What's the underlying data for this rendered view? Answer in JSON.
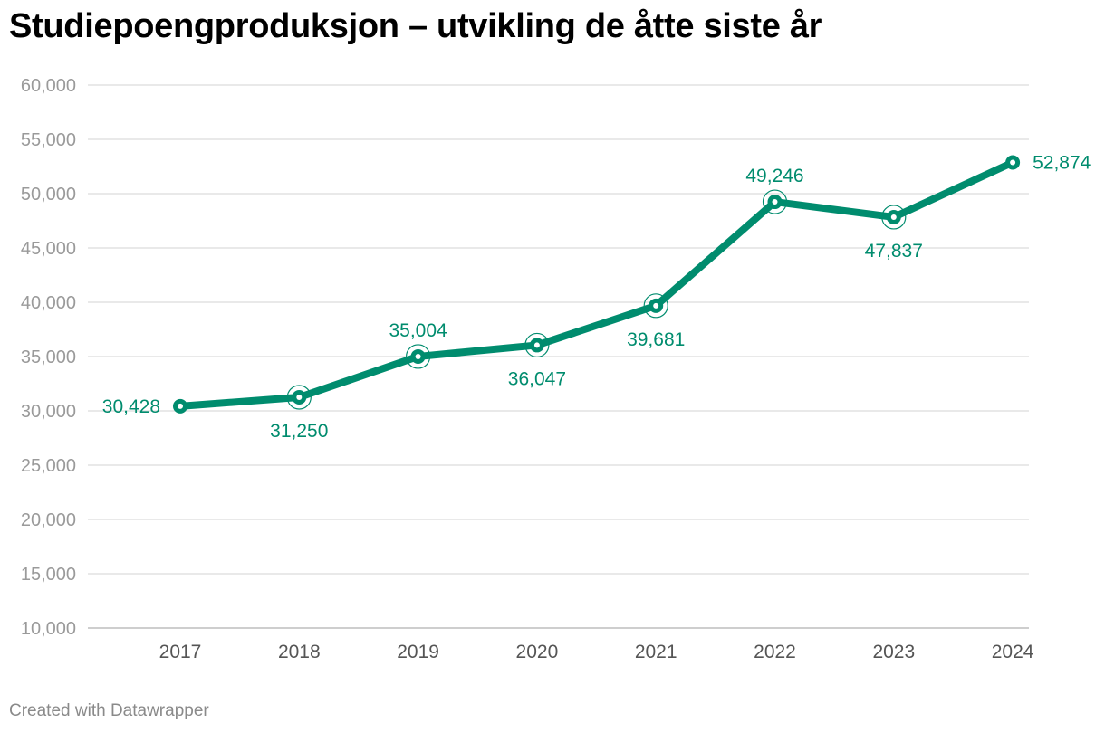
{
  "footer": "Created with Datawrapper",
  "colors": {
    "line": "#008c6e",
    "grid": "#e2e2e2",
    "ytick": "#9a9a9a",
    "xtick": "#555555"
  },
  "chart_data": {
    "type": "line",
    "title": "Studiepoengproduksjon – utvikling de åtte siste år",
    "xlabel": "",
    "ylabel": "",
    "ylim": [
      10000,
      60000
    ],
    "yticks": [
      10000,
      15000,
      20000,
      25000,
      30000,
      35000,
      40000,
      45000,
      50000,
      55000,
      60000
    ],
    "ytick_labels": [
      "10,000",
      "15,000",
      "20,000",
      "25,000",
      "30,000",
      "35,000",
      "40,000",
      "45,000",
      "50,000",
      "55,000",
      "60,000"
    ],
    "grid": true,
    "categories": [
      "2017",
      "2018",
      "2019",
      "2020",
      "2021",
      "2022",
      "2023",
      "2024"
    ],
    "series": [
      {
        "values": [
          30428,
          31250,
          35004,
          36047,
          39681,
          49246,
          47837,
          52874
        ],
        "labels": [
          "30,428",
          "31,250",
          "35,004",
          "36,047",
          "39,681",
          "49,246",
          "47,837",
          "52,874"
        ]
      }
    ]
  }
}
